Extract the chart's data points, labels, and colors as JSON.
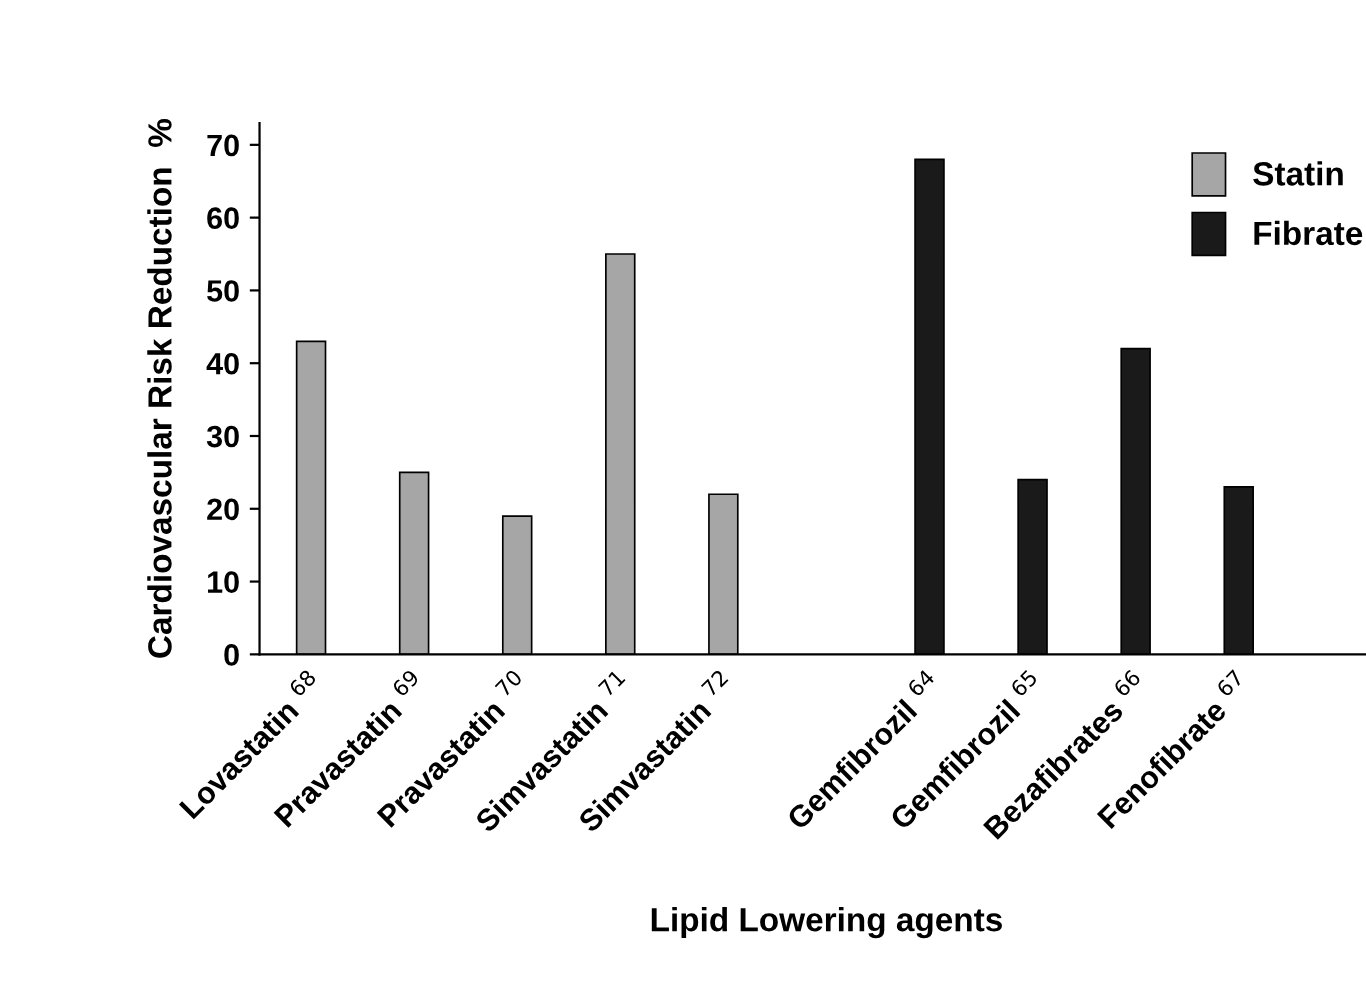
{
  "chart_data": {
    "type": "bar",
    "xlabel": "Lipid Lowering agents",
    "ylabel": "Cardiovascular Risk Reduction  %",
    "categories": [
      "Lovastatin $^{68}$",
      "Pravastatin $^{69}$",
      "Pravastatin $^{70}$",
      "Simvastatin $^{71}$",
      "Simvastatin $^{72}$",
      null,
      "Gemfibrozil $^{64}$",
      "Gemfibrozil $^{65}$",
      "Bezafibrates $^{66}$",
      "Fenofibrate $^{67}$",
      null
    ],
    "series": [
      {
        "name": "Statin",
        "color": "#a6a6a6",
        "values": [
          43,
          25,
          19,
          55,
          22,
          null,
          null,
          null,
          null,
          null,
          null
        ]
      },
      {
        "name": "Fibrate",
        "color": "#1a1a1a",
        "values": [
          null,
          null,
          null,
          null,
          null,
          null,
          68,
          24,
          42,
          23,
          null
        ]
      }
    ],
    "ylim": [
      0,
      73
    ],
    "yticks": [
      0,
      10,
      20,
      30,
      40,
      50,
      60,
      70
    ],
    "grid": false,
    "legend": "top right"
  }
}
